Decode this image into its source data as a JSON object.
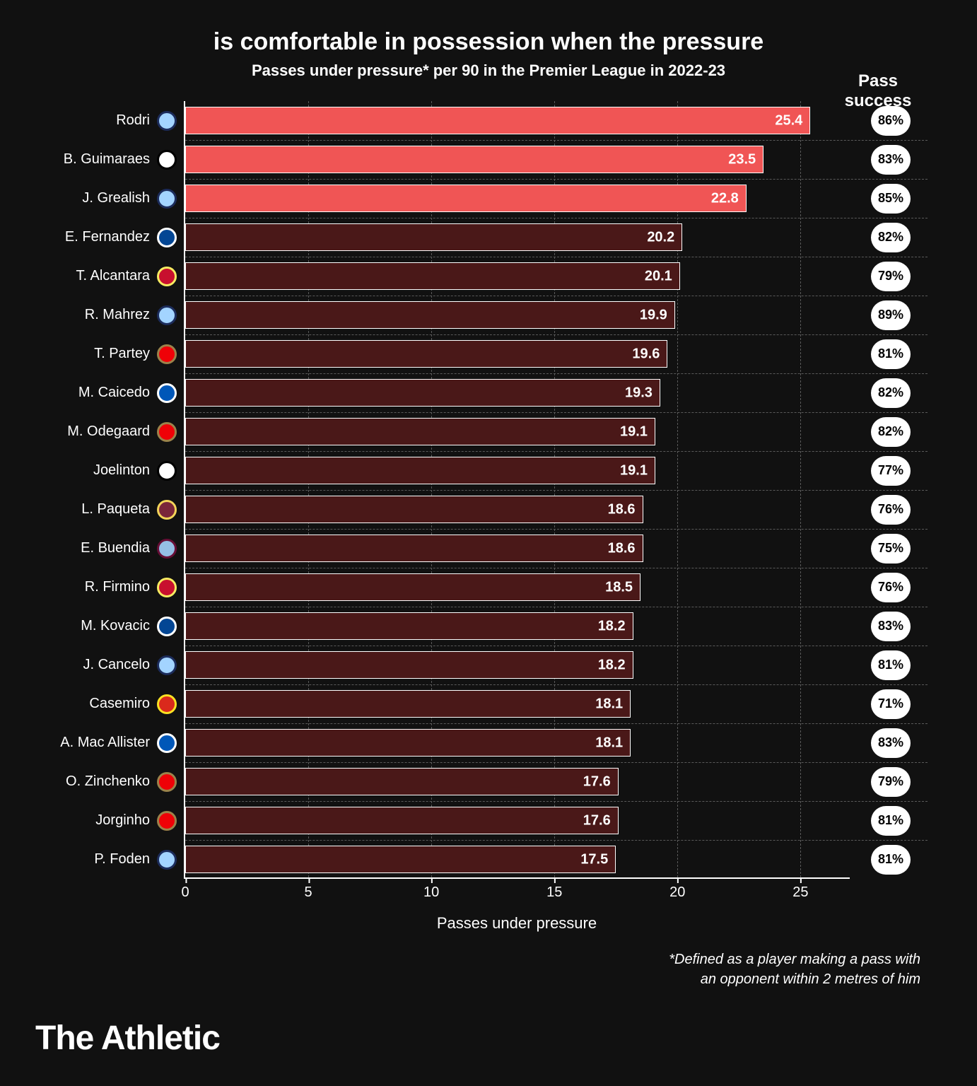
{
  "chart": {
    "type": "bar-horizontal",
    "title": "is comfortable in possession when the pressure",
    "subtitle": "Passes under pressure* per 90 in the Premier League in 2022-23",
    "success_header": "Pass success",
    "xlabel": "Passes under pressure",
    "xmax": 27,
    "xticks": [
      0,
      5,
      10,
      15,
      20,
      25
    ],
    "grid_color": "#5a5a5a",
    "axis_color": "#ffffff",
    "background": "#111111",
    "bar_border_color": "#ffffff",
    "highlight_color": "#f05555",
    "dim_color": "#4a1818",
    "pill_bg": "#ffffff",
    "pill_fg": "#000000",
    "value_fontsize": 20,
    "label_fontsize": 20,
    "players": [
      {
        "name": "Rodri",
        "value": 25.4,
        "success": "86%",
        "highlight": true,
        "badge_bg": "#a3d4ff",
        "badge_ring": "#1c2c5b"
      },
      {
        "name": "B. Guimaraes",
        "value": 23.5,
        "success": "83%",
        "highlight": true,
        "badge_bg": "#ffffff",
        "badge_ring": "#000000"
      },
      {
        "name": "J. Grealish",
        "value": 22.8,
        "success": "85%",
        "highlight": true,
        "badge_bg": "#a3d4ff",
        "badge_ring": "#1c2c5b"
      },
      {
        "name": "E. Fernandez",
        "value": 20.2,
        "success": "82%",
        "highlight": false,
        "badge_bg": "#034694",
        "badge_ring": "#ffffff"
      },
      {
        "name": "T. Alcantara",
        "value": 20.1,
        "success": "79%",
        "highlight": false,
        "badge_bg": "#c8102e",
        "badge_ring": "#f6eb61"
      },
      {
        "name": "R. Mahrez",
        "value": 19.9,
        "success": "89%",
        "highlight": false,
        "badge_bg": "#a3d4ff",
        "badge_ring": "#1c2c5b"
      },
      {
        "name": "T. Partey",
        "value": 19.6,
        "success": "81%",
        "highlight": false,
        "badge_bg": "#ef0107",
        "badge_ring": "#9c824a"
      },
      {
        "name": "M. Caicedo",
        "value": 19.3,
        "success": "82%",
        "highlight": false,
        "badge_bg": "#0057b8",
        "badge_ring": "#ffffff"
      },
      {
        "name": "M. Odegaard",
        "value": 19.1,
        "success": "82%",
        "highlight": false,
        "badge_bg": "#ef0107",
        "badge_ring": "#9c824a"
      },
      {
        "name": "Joelinton",
        "value": 19.1,
        "success": "77%",
        "highlight": false,
        "badge_bg": "#ffffff",
        "badge_ring": "#000000"
      },
      {
        "name": "L. Paqueta",
        "value": 18.6,
        "success": "76%",
        "highlight": false,
        "badge_bg": "#7a263a",
        "badge_ring": "#f3d459"
      },
      {
        "name": "E. Buendia",
        "value": 18.6,
        "success": "75%",
        "highlight": false,
        "badge_bg": "#95bfe5",
        "badge_ring": "#670e36"
      },
      {
        "name": "R. Firmino",
        "value": 18.5,
        "success": "76%",
        "highlight": false,
        "badge_bg": "#c8102e",
        "badge_ring": "#f6eb61"
      },
      {
        "name": "M. Kovacic",
        "value": 18.2,
        "success": "83%",
        "highlight": false,
        "badge_bg": "#034694",
        "badge_ring": "#ffffff"
      },
      {
        "name": "J. Cancelo",
        "value": 18.2,
        "success": "81%",
        "highlight": false,
        "badge_bg": "#a3d4ff",
        "badge_ring": "#1c2c5b"
      },
      {
        "name": "Casemiro",
        "value": 18.1,
        "success": "71%",
        "highlight": false,
        "badge_bg": "#da291c",
        "badge_ring": "#fbe122"
      },
      {
        "name": "A. Mac Allister",
        "value": 18.1,
        "success": "83%",
        "highlight": false,
        "badge_bg": "#0057b8",
        "badge_ring": "#ffffff"
      },
      {
        "name": "O. Zinchenko",
        "value": 17.6,
        "success": "79%",
        "highlight": false,
        "badge_bg": "#ef0107",
        "badge_ring": "#9c824a"
      },
      {
        "name": "Jorginho",
        "value": 17.6,
        "success": "81%",
        "highlight": false,
        "badge_bg": "#ef0107",
        "badge_ring": "#9c824a"
      },
      {
        "name": "P. Foden",
        "value": 17.5,
        "success": "81%",
        "highlight": false,
        "badge_bg": "#a3d4ff",
        "badge_ring": "#1c2c5b"
      }
    ],
    "footnote_line1": "*Defined as a player making a pass with",
    "footnote_line2": "an opponent within 2 metres of him",
    "brand": "The Athletic"
  }
}
